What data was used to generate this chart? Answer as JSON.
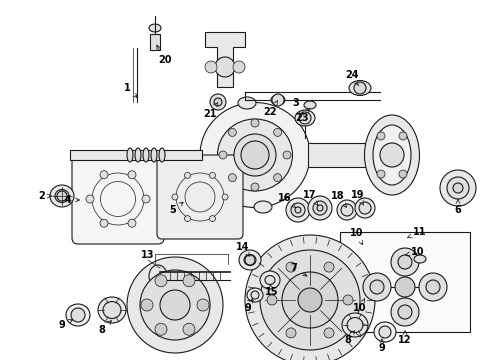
{
  "bg_color": "#ffffff",
  "line_color": "#1a1a1a",
  "label_color": "#000000",
  "figsize": [
    4.9,
    3.6
  ],
  "dpi": 100,
  "lw_main": 0.8,
  "lw_thin": 0.5,
  "lw_thick": 1.2
}
